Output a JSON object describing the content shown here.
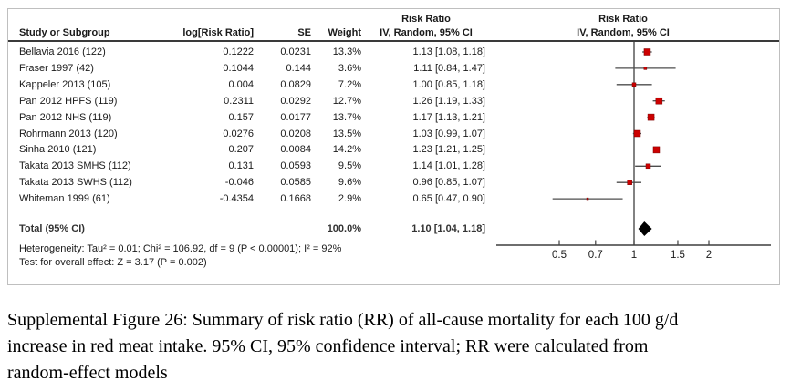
{
  "header": {
    "study_col": "Study or Subgroup",
    "logrr_col": "log[Risk Ratio]",
    "se_col": "SE",
    "weight_col": "Weight",
    "ci_col_line1": "Risk Ratio",
    "ci_col_line2": "IV, Random, 95% CI",
    "plot_col_line1": "Risk Ratio",
    "plot_col_line2": "IV, Random, 95% CI"
  },
  "chart_data": {
    "type": "scatter",
    "subtype": "forest-plot",
    "x_scale": "log",
    "null_line_value": 1,
    "axis_ticks": [
      0.5,
      0.7,
      1,
      1.5,
      2
    ],
    "axis_tick_labels": [
      "0.5",
      "0.7",
      "1",
      "1.5",
      "2"
    ],
    "studies": [
      {
        "name": "Bellavia 2016 (122)",
        "log_rr": "0.1222",
        "se": "0.0231",
        "weight": "13.3%",
        "weight_pct": 13.3,
        "ci_text": "1.13 [1.08, 1.18]",
        "rr": 1.13,
        "ci_low": 1.08,
        "ci_high": 1.18
      },
      {
        "name": "Fraser 1997 (42)",
        "log_rr": "0.1044",
        "se": "0.144",
        "weight": "3.6%",
        "weight_pct": 3.6,
        "ci_text": "1.11 [0.84, 1.47]",
        "rr": 1.11,
        "ci_low": 0.84,
        "ci_high": 1.47
      },
      {
        "name": "Kappeler 2013 (105)",
        "log_rr": "0.004",
        "se": "0.0829",
        "weight": "7.2%",
        "weight_pct": 7.2,
        "ci_text": "1.00 [0.85, 1.18]",
        "rr": 1.0,
        "ci_low": 0.85,
        "ci_high": 1.18
      },
      {
        "name": "Pan 2012 HPFS (119)",
        "log_rr": "0.2311",
        "se": "0.0292",
        "weight": "12.7%",
        "weight_pct": 12.7,
        "ci_text": "1.26 [1.19, 1.33]",
        "rr": 1.26,
        "ci_low": 1.19,
        "ci_high": 1.33
      },
      {
        "name": "Pan 2012 NHS (119)",
        "log_rr": "0.157",
        "se": "0.0177",
        "weight": "13.7%",
        "weight_pct": 13.7,
        "ci_text": "1.17 [1.13, 1.21]",
        "rr": 1.17,
        "ci_low": 1.13,
        "ci_high": 1.21
      },
      {
        "name": "Rohrmann 2013 (120)",
        "log_rr": "0.0276",
        "se": "0.0208",
        "weight": "13.5%",
        "weight_pct": 13.5,
        "ci_text": "1.03 [0.99, 1.07]",
        "rr": 1.03,
        "ci_low": 0.99,
        "ci_high": 1.07
      },
      {
        "name": "Sinha 2010 (121)",
        "log_rr": "0.207",
        "se": "0.0084",
        "weight": "14.2%",
        "weight_pct": 14.2,
        "ci_text": "1.23 [1.21, 1.25]",
        "rr": 1.23,
        "ci_low": 1.21,
        "ci_high": 1.25
      },
      {
        "name": "Takata 2013 SMHS (112)",
        "log_rr": "0.131",
        "se": "0.0593",
        "weight": "9.5%",
        "weight_pct": 9.5,
        "ci_text": "1.14 [1.01, 1.28]",
        "rr": 1.14,
        "ci_low": 1.01,
        "ci_high": 1.28
      },
      {
        "name": "Takata 2013 SWHS (112)",
        "log_rr": "-0.046",
        "se": "0.0585",
        "weight": "9.6%",
        "weight_pct": 9.6,
        "ci_text": "0.96 [0.85, 1.07]",
        "rr": 0.96,
        "ci_low": 0.85,
        "ci_high": 1.07
      },
      {
        "name": "Whiteman 1999 (61)",
        "log_rr": "-0.4354",
        "se": "0.1668",
        "weight": "2.9%",
        "weight_pct": 2.9,
        "ci_text": "0.65 [0.47, 0.90]",
        "rr": 0.65,
        "ci_low": 0.47,
        "ci_high": 0.9
      }
    ],
    "total": {
      "label": "Total (95% CI)",
      "weight": "100.0%",
      "ci_text": "1.10 [1.04, 1.18]",
      "rr": 1.1,
      "ci_low": 1.04,
      "ci_high": 1.18
    }
  },
  "footnotes": {
    "heterogeneity": "Heterogeneity: Tau² = 0.01; Chi² = 106.92, df = 9 (P < 0.00001); I² = 92%",
    "overall_effect": "Test for overall effect: Z = 3.17 (P = 0.002)"
  },
  "caption_lines": [
    "Supplemental Figure 26: Summary of risk ratio (RR) of all-cause mortality for each 100 g/d",
    "increase in red meat intake. 95% CI, 95% confidence interval; RR were calculated from",
    "random-effect models"
  ],
  "colors": {
    "marker": "#cc0000",
    "marker_border": "#7a0000",
    "ci_line": "#4d4d4d",
    "axis": "#3f3f3f",
    "diamond": "#000000",
    "panel_border": "#bfbfbf",
    "header_rule": "#3a3a3a",
    "text": "#1a1a1a"
  }
}
